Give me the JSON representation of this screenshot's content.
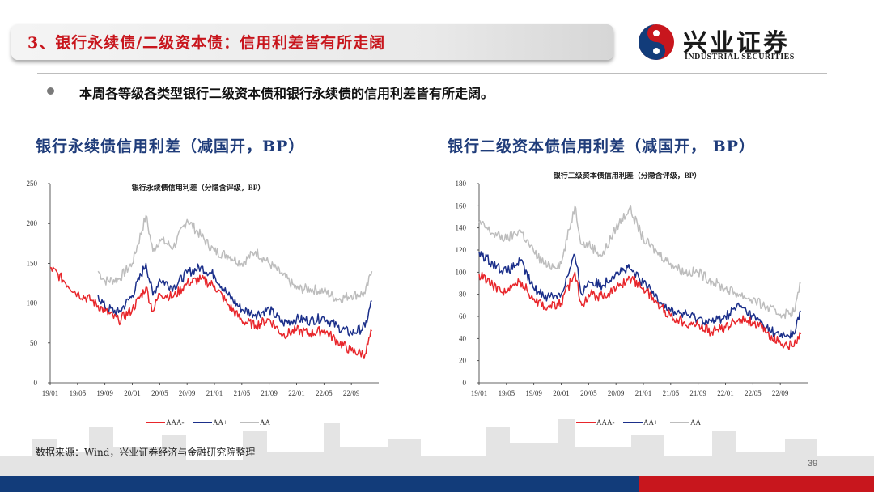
{
  "header": {
    "title": "3、银行永续债/二级资本债：信用利差皆有所走阔",
    "logo_cn": "兴业证券",
    "logo_en": "INDUSTRIAL SECURITIES"
  },
  "bullet_text": "本周各等级各类型银行二级资本债和银行永续债的信用利差皆有所走阔。",
  "left_heading": "银行永续债信用利差（减国开，BP）",
  "right_heading": "银行二级资本债信用利差（减国开， BP）",
  "source": "数据来源：Wind，兴业证券经济与金融研究院整理",
  "page_number": "39",
  "colors": {
    "AAA-": "#e8262b",
    "AA+": "#1b2f8a",
    "AA": "#bdbdbd",
    "brand_red": "#c8161d",
    "brand_blue": "#123c7a"
  },
  "chart_data": [
    {
      "type": "line",
      "title": "银行永续债信用利差（分隐含评级，BP）",
      "x_ticks": [
        "19/01",
        "19/05",
        "19/09",
        "20/01",
        "20/05",
        "20/09",
        "21/01",
        "21/05",
        "21/09",
        "22/01",
        "22/05",
        "22/09"
      ],
      "ylim": [
        0,
        250
      ],
      "y_ticks": [
        0,
        50,
        100,
        150,
        200,
        250
      ],
      "legend": [
        "AAA-",
        "AA+",
        "AA"
      ],
      "legend_position": "bottom",
      "series": [
        {
          "name": "AAA-",
          "x": [
            "2019-01",
            "2019-03",
            "2019-05",
            "2019-07",
            "2019-09",
            "2019-11",
            "2020-01",
            "2020-03",
            "2020-04",
            "2020-05",
            "2020-07",
            "2020-09",
            "2020-11",
            "2021-01",
            "2021-03",
            "2021-05",
            "2021-07",
            "2021-09",
            "2021-11",
            "2022-01",
            "2022-03",
            "2022-05",
            "2022-07",
            "2022-09",
            "2022-11",
            "2022-12"
          ],
          "values": [
            145,
            128,
            112,
            104,
            90,
            78,
            92,
            120,
            90,
            112,
            108,
            125,
            130,
            122,
            98,
            78,
            72,
            80,
            60,
            66,
            62,
            66,
            52,
            40,
            36,
            65
          ]
        },
        {
          "name": "AA+",
          "x": [
            "2019-08",
            "2019-09",
            "2019-11",
            "2020-01",
            "2020-03",
            "2020-04",
            "2020-05",
            "2020-07",
            "2020-09",
            "2020-11",
            "2021-01",
            "2021-03",
            "2021-05",
            "2021-07",
            "2021-09",
            "2021-11",
            "2022-01",
            "2022-03",
            "2022-05",
            "2022-07",
            "2022-09",
            "2022-11",
            "2022-12"
          ],
          "values": [
            110,
            95,
            88,
            110,
            150,
            110,
            130,
            120,
            138,
            145,
            135,
            110,
            92,
            86,
            92,
            75,
            80,
            78,
            82,
            70,
            62,
            70,
            103
          ]
        },
        {
          "name": "AA",
          "x": [
            "2019-08",
            "2019-09",
            "2019-11",
            "2020-01",
            "2020-03",
            "2020-04",
            "2020-05",
            "2020-07",
            "2020-09",
            "2020-11",
            "2021-01",
            "2021-03",
            "2021-05",
            "2021-07",
            "2021-09",
            "2021-11",
            "2022-01",
            "2022-03",
            "2022-05",
            "2022-07",
            "2022-09",
            "2022-11",
            "2022-12"
          ],
          "values": [
            140,
            128,
            130,
            150,
            210,
            165,
            180,
            170,
            205,
            185,
            165,
            160,
            150,
            165,
            150,
            135,
            118,
            118,
            115,
            105,
            110,
            112,
            140
          ]
        }
      ]
    },
    {
      "type": "line",
      "title": "银行二级资本债信用利差（分隐含评级，BP）",
      "x_ticks": [
        "19/01",
        "19/05",
        "19/09",
        "20/01",
        "20/05",
        "20/09",
        "21/01",
        "21/05",
        "21/09",
        "22/01",
        "22/05",
        "22/09"
      ],
      "ylim": [
        0,
        180
      ],
      "y_ticks": [
        0,
        20,
        40,
        60,
        80,
        100,
        120,
        140,
        160,
        180
      ],
      "legend": [
        "AAA-",
        "AA+",
        "AA"
      ],
      "legend_position": "bottom",
      "series": [
        {
          "name": "AAA-",
          "x": [
            "2019-01",
            "2019-03",
            "2019-05",
            "2019-07",
            "2019-09",
            "2019-11",
            "2020-01",
            "2020-03",
            "2020-04",
            "2020-05",
            "2020-07",
            "2020-09",
            "2020-11",
            "2021-01",
            "2021-03",
            "2021-05",
            "2021-07",
            "2021-09",
            "2021-11",
            "2022-01",
            "2022-03",
            "2022-05",
            "2022-07",
            "2022-09",
            "2022-11",
            "2022-12"
          ],
          "values": [
            98,
            88,
            82,
            92,
            76,
            68,
            72,
            100,
            70,
            80,
            78,
            85,
            95,
            86,
            72,
            60,
            55,
            52,
            46,
            50,
            58,
            55,
            45,
            36,
            33,
            44
          ]
        },
        {
          "name": "AA+",
          "x": [
            "2019-01",
            "2019-03",
            "2019-05",
            "2019-07",
            "2019-09",
            "2019-11",
            "2020-01",
            "2020-03",
            "2020-04",
            "2020-05",
            "2020-07",
            "2020-09",
            "2020-11",
            "2021-01",
            "2021-03",
            "2021-05",
            "2021-07",
            "2021-09",
            "2021-11",
            "2022-01",
            "2022-03",
            "2022-05",
            "2022-07",
            "2022-09",
            "2022-11",
            "2022-12"
          ],
          "values": [
            118,
            108,
            100,
            110,
            85,
            78,
            80,
            115,
            80,
            92,
            88,
            100,
            103,
            90,
            78,
            65,
            62,
            58,
            55,
            60,
            70,
            60,
            50,
            42,
            44,
            65
          ]
        },
        {
          "name": "AA",
          "x": [
            "2019-01",
            "2019-03",
            "2019-05",
            "2019-07",
            "2019-09",
            "2019-11",
            "2020-01",
            "2020-03",
            "2020-04",
            "2020-05",
            "2020-07",
            "2020-09",
            "2020-11",
            "2021-01",
            "2021-03",
            "2021-05",
            "2021-07",
            "2021-09",
            "2021-11",
            "2022-01",
            "2022-03",
            "2022-05",
            "2022-07",
            "2022-09",
            "2022-11",
            "2022-12"
          ],
          "values": [
            145,
            135,
            130,
            138,
            118,
            105,
            108,
            160,
            125,
            125,
            115,
            140,
            158,
            130,
            118,
            108,
            100,
            100,
            92,
            85,
            80,
            75,
            68,
            62,
            64,
            90
          ]
        }
      ]
    }
  ]
}
